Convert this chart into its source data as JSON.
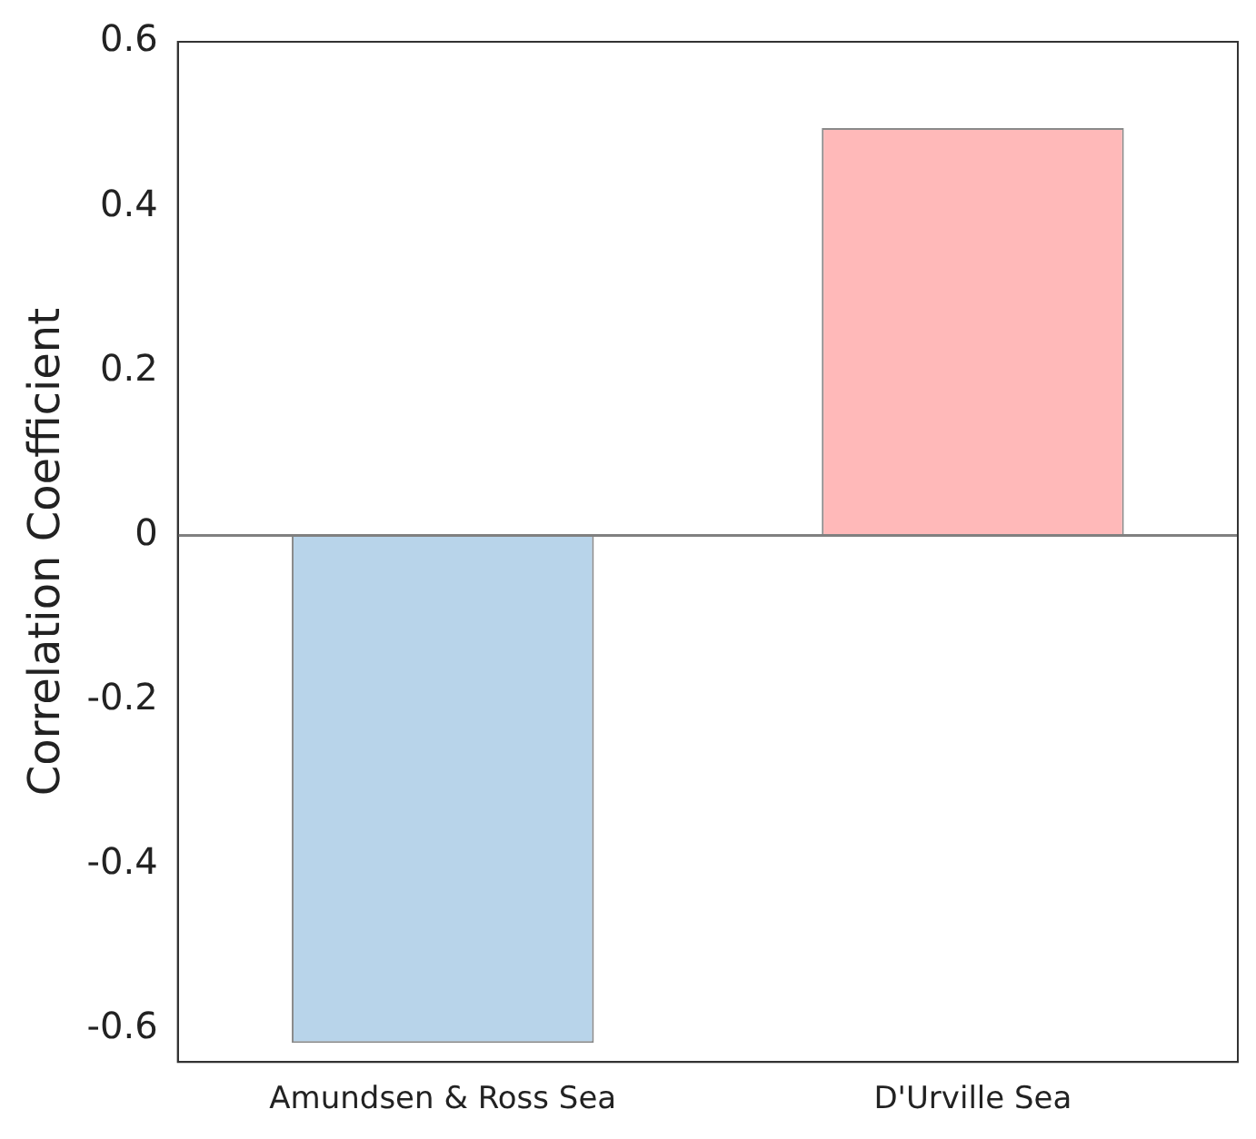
{
  "chart_data": {
    "type": "bar",
    "ylabel": "Correlation Coefficient",
    "categories": [
      "Amundsen & Ross Sea",
      "D'Urville Sea"
    ],
    "values": [
      -0.617,
      0.495
    ],
    "colors": [
      "#b8d4ea",
      "#ffb9b9"
    ],
    "ylim": [
      -0.64,
      0.6
    ],
    "yticks": [
      -0.6,
      -0.4,
      -0.2,
      0,
      0.2,
      0.4,
      0.6
    ],
    "ref_lines": [
      {
        "axis": "y",
        "value": 0,
        "color": "#808080"
      }
    ],
    "grid": false,
    "legend": false
  }
}
